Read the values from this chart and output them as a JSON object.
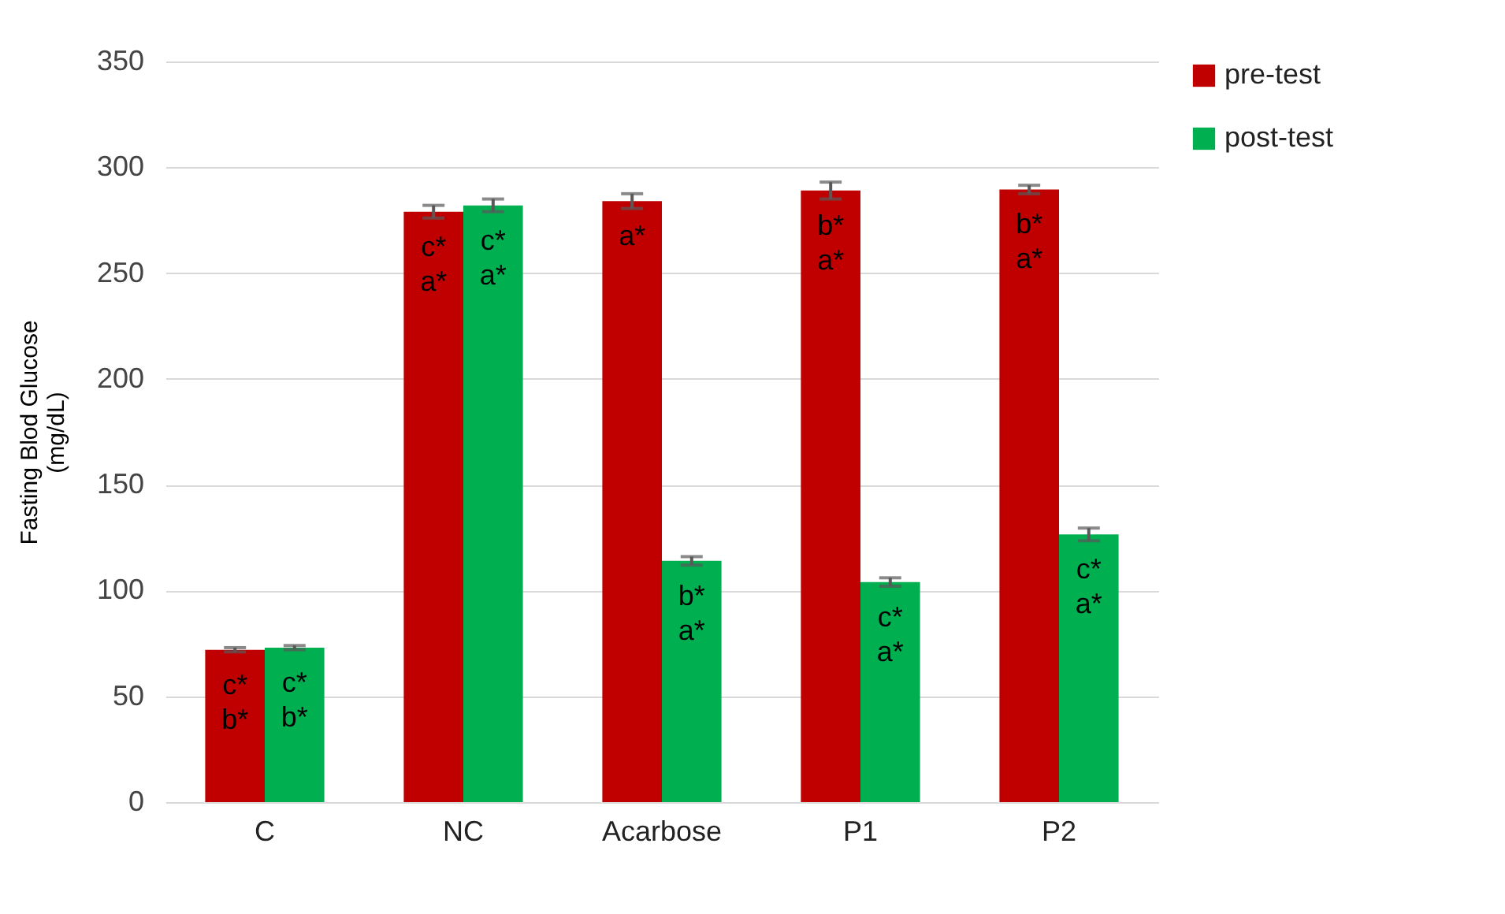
{
  "chart_data": {
    "type": "bar",
    "ylabel": "Fasting Blod Glucose\n(mg/dL)",
    "categories": [
      "C",
      "NC",
      "Acarbose",
      "P1",
      "P2"
    ],
    "series": [
      {
        "name": "pre-test",
        "color": "#c00000",
        "values": [
          72,
          279,
          284,
          289,
          289.5
        ],
        "errors": [
          1,
          3,
          3.5,
          4,
          2
        ],
        "value_labels": [
          "c*\nb*",
          "c*\na*",
          "a*",
          "b*\na*",
          "b*\na*"
        ]
      },
      {
        "name": "post-test",
        "color": "#00b050",
        "values": [
          73,
          282,
          114,
          104,
          126.5
        ],
        "errors": [
          1,
          3,
          2,
          2,
          3
        ],
        "value_labels": [
          "c*\nb*",
          "c*\na*",
          "b*\na*",
          "c*\na*",
          "c*\na*"
        ]
      }
    ],
    "ylim": [
      0,
      350
    ],
    "yticks": [
      0,
      50,
      100,
      150,
      200,
      250,
      300,
      350
    ],
    "grid": "y",
    "legend": "right"
  }
}
